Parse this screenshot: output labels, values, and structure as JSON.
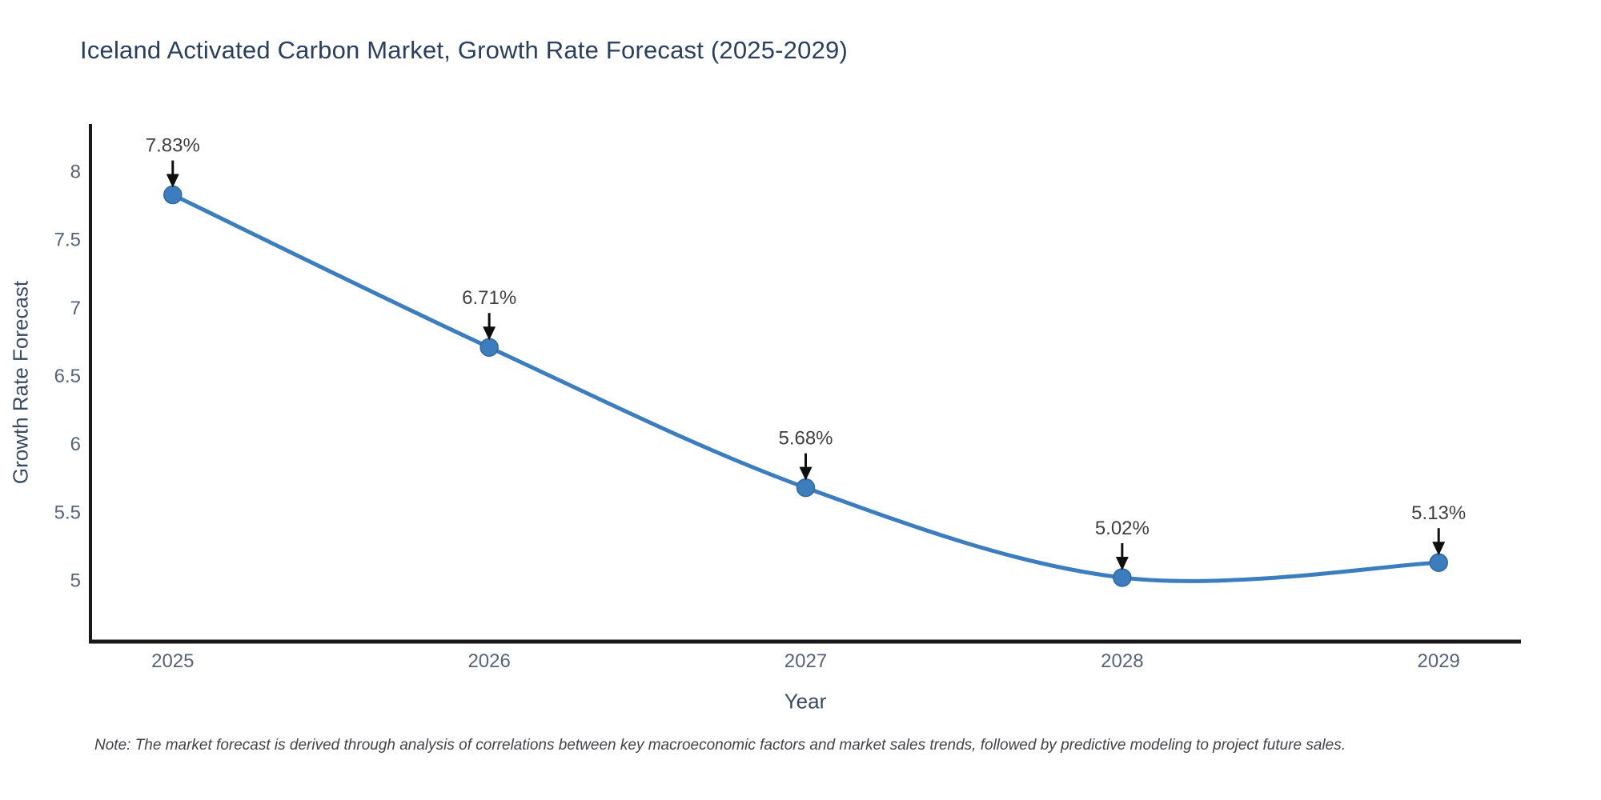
{
  "chart_data": {
    "type": "line",
    "title": "Iceland Activated Carbon Market, Growth Rate Forecast (2025-2029)",
    "xlabel": "Year",
    "ylabel": "Growth Rate Forecast",
    "note": "Note: The market forecast is derived through analysis of correlations between key macroeconomic factors and market sales trends, followed by predictive modeling to project future sales.",
    "categories": [
      2025,
      2026,
      2027,
      2028,
      2029
    ],
    "values": [
      7.83,
      6.71,
      5.68,
      5.02,
      5.13
    ],
    "point_labels": [
      "7.83%",
      "6.71%",
      "5.68%",
      "5.02%",
      "5.13%"
    ],
    "x_tick_labels": [
      "2025",
      "2026",
      "2027",
      "2028",
      "2029"
    ],
    "y_ticks": [
      8,
      7.5,
      7,
      6.5,
      6,
      5.5,
      5
    ],
    "y_tick_labels": [
      "8",
      "7.5",
      "7",
      "6.5",
      "6",
      "5.5",
      "5"
    ],
    "x_range": [
      2024.74,
      2029.26
    ],
    "y_range": [
      4.55,
      8.35
    ],
    "grid": false,
    "legend": "none",
    "line_shape": "spline",
    "annotation_arrows": true,
    "colors": {
      "line": "#3c7dbe",
      "marker_fill": "#3c7dbe",
      "marker_edge": "#31699f",
      "axis_line": "#191919",
      "title_text": "#2a3f5f",
      "axis_title_text": "#3b4a63",
      "tick_text": "#566378",
      "annotation_text": "#3f3f3f",
      "arrow": "#0f0f0f",
      "note_text": "#42424a",
      "background": "#ffffff"
    }
  }
}
